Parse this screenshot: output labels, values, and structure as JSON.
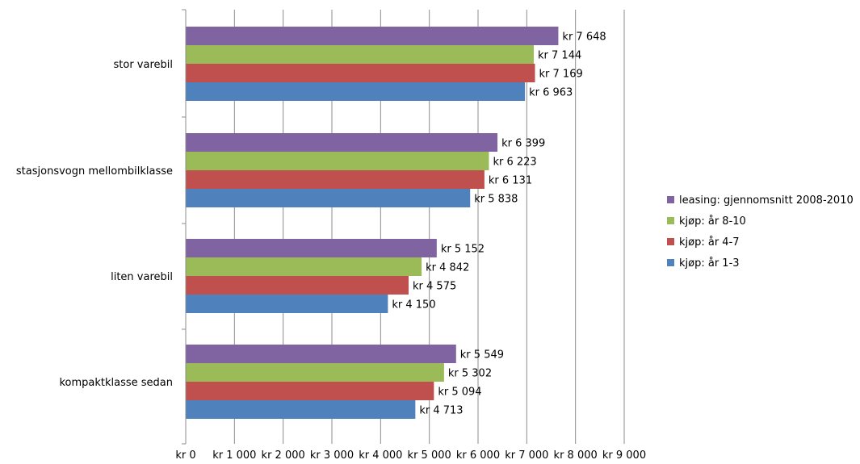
{
  "chart_data": {
    "type": "bar",
    "orientation": "horizontal",
    "title": "",
    "xlabel": "",
    "ylabel": "",
    "categories": [
      "kompaktklasse sedan",
      "liten varebil",
      "stasjonsvogn mellombilklasse",
      "stor varebil"
    ],
    "series": [
      {
        "name": "kjøp: år 1-3",
        "color": "#4f81bd",
        "values": [
          4713,
          4150,
          5838,
          6963
        ],
        "labels": [
          "kr 4 713",
          "kr 4 150",
          "kr 5 838",
          "kr 6 963"
        ]
      },
      {
        "name": "kjøp: år 4-7",
        "color": "#c0504d",
        "values": [
          5094,
          4575,
          6131,
          7169
        ],
        "labels": [
          "kr 5 094",
          "kr 4 575",
          "kr 6 131",
          "kr 7 169"
        ]
      },
      {
        "name": "kjøp: år 8-10",
        "color": "#9bbb59",
        "values": [
          5302,
          4842,
          6223,
          7144
        ],
        "labels": [
          "kr 5 302",
          "kr 4 842",
          "kr 6 223",
          "kr 7 144"
        ]
      },
      {
        "name": "leasing: gjennomsnitt 2008-2010",
        "color": "#8064a2",
        "values": [
          5549,
          5152,
          6399,
          7648
        ],
        "labels": [
          "kr 5 549",
          "kr 5 152",
          "kr 6 399",
          "kr 7 648"
        ]
      }
    ],
    "xlim": [
      0,
      9000
    ],
    "x_ticks": [
      0,
      1000,
      2000,
      3000,
      4000,
      5000,
      6000,
      7000,
      8000,
      9000
    ],
    "x_tick_labels": [
      "kr 0",
      "kr 1 000",
      "kr 2 000",
      "kr 3 000",
      "kr 4 000",
      "kr 5 000",
      "kr 6 000",
      "kr 7 000",
      "kr 8 000",
      "kr 9 000"
    ],
    "grid": "vertical",
    "legend_position": "right",
    "legend_order": [
      3,
      2,
      1,
      0
    ]
  }
}
